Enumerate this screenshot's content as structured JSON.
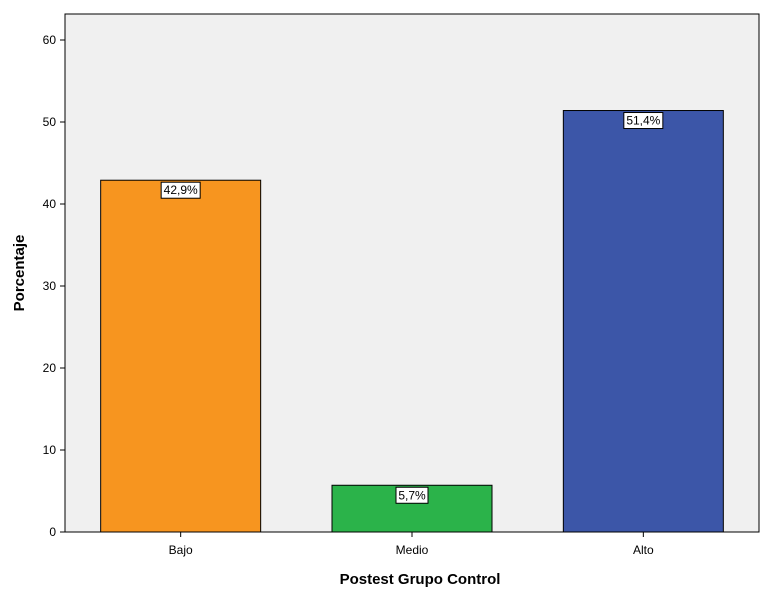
{
  "chart_data": {
    "type": "bar",
    "title": "",
    "xlabel": "Postest Grupo Control",
    "ylabel": "Porcentaje",
    "ylim": [
      0,
      63
    ],
    "yticks": [
      0,
      10,
      20,
      30,
      40,
      50,
      60
    ],
    "categories": [
      "Bajo",
      "Medio",
      "Alto"
    ],
    "values": [
      42.9,
      5.7,
      51.4
    ],
    "data_labels": [
      "42,9%",
      "5,7%",
      "51,4%"
    ],
    "colors": [
      "#f7951f",
      "#2bb34a",
      "#3c56a8"
    ],
    "plot_background": "#f0f0f0",
    "grid": false,
    "legend": "none"
  }
}
